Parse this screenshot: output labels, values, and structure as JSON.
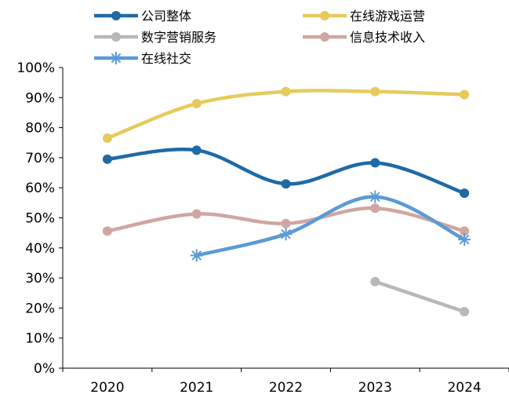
{
  "chart_data": {
    "type": "line",
    "categories": [
      "2020",
      "2021",
      "2022",
      "2023",
      "2024"
    ],
    "yticks": [
      "0%",
      "10%",
      "20%",
      "30%",
      "40%",
      "50%",
      "60%",
      "70%",
      "80%",
      "90%",
      "100%"
    ],
    "ylim": [
      0,
      100
    ],
    "y_unit": "%",
    "legend_position": "top",
    "grid": false,
    "series": [
      {
        "name": "公司整体",
        "color": "#1F6AA5",
        "marker": "circle",
        "values": [
          69.5,
          72.5,
          61.3,
          68.3,
          58.2
        ]
      },
      {
        "name": "在线游戏运营",
        "color": "#E6CB5C",
        "marker": "circle",
        "values": [
          76.5,
          88.0,
          92.0,
          92.0,
          91.0
        ]
      },
      {
        "name": "数字营销服务",
        "color": "#B8B8B8",
        "marker": "circle",
        "values": [
          null,
          null,
          null,
          28.8,
          18.8
        ]
      },
      {
        "name": "信息技术收入",
        "color": "#D0A6A1",
        "marker": "circle",
        "values": [
          45.6,
          51.3,
          48.1,
          53.2,
          45.6
        ]
      },
      {
        "name": "在线社交",
        "color": "#5B9BD5",
        "marker": "star",
        "values": [
          null,
          37.5,
          44.6,
          57.0,
          42.8
        ]
      }
    ]
  }
}
